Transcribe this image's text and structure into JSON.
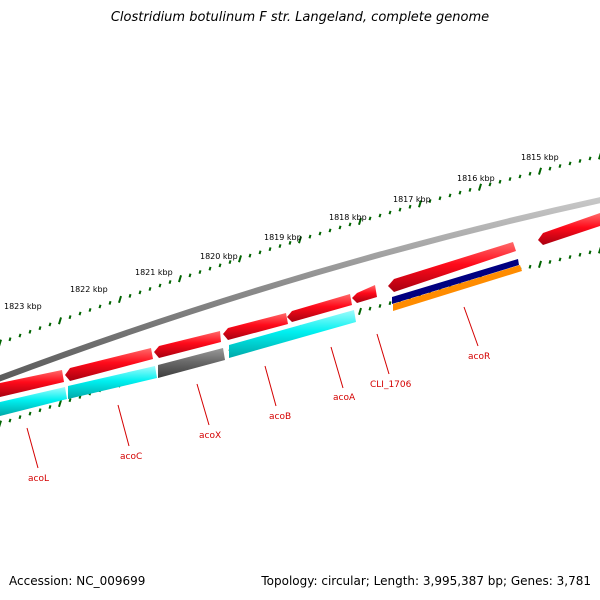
{
  "title": "Clostridium botulinum F str. Langeland, complete genome",
  "accession_text": "Accession: NC_009699",
  "summary_text": "Topology: circular; Length: 3,995,387 bp; Genes: 3,781",
  "colors": {
    "backbone": "#808080",
    "cds_forward": "#e8001c",
    "cds_reverse": "#ff1a2e",
    "feature_cyan": "#00e5e5",
    "feature_gray": "#606060",
    "feature_navy": "#000080",
    "feature_orange": "#ff8c00",
    "tick": "#006400",
    "label": "#cc0000"
  },
  "kbp_ticks": [
    {
      "label": "1815 kbp"
    },
    {
      "label": "1816 kbp"
    },
    {
      "label": "1817 kbp"
    },
    {
      "label": "1818 kbp"
    },
    {
      "label": "1819 kbp"
    },
    {
      "label": "1820 kbp"
    },
    {
      "label": "1821 kbp"
    },
    {
      "label": "1822 kbp"
    },
    {
      "label": "1823 kbp"
    }
  ],
  "genes": [
    {
      "name": "acoL"
    },
    {
      "name": "acoC"
    },
    {
      "name": "acoX"
    },
    {
      "name": "acoB"
    },
    {
      "name": "acoA"
    },
    {
      "name": "CLI_1706"
    },
    {
      "name": "acoR"
    }
  ]
}
